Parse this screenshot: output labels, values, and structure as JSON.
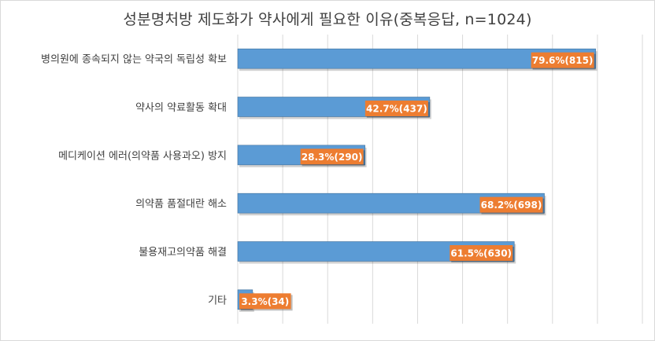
{
  "colors": {
    "bar": "#5b9bd5",
    "bar_edge": "#41719c",
    "label_box": "#ed7d31",
    "grid": "#d9d9d9",
    "text": "#404040"
  },
  "chart_data": {
    "type": "bar",
    "orientation": "horizontal",
    "title": "성분명처방 제도화가 약사에게 필요한 이유(중복응답, n=1024)",
    "xlabel": "",
    "ylabel": "",
    "xlim": [
      0,
      90
    ],
    "grid": true,
    "legend": "none",
    "categories": [
      "병의원에 종속되지 않는 약국의 독립성 확보",
      "약사의 약료활동 확대",
      "메디케이션 에러(의약품 사용과오) 방지",
      "의약품 품절대란 해소",
      "불용재고의약품 해결",
      "기타"
    ],
    "values": [
      79.6,
      42.7,
      28.3,
      68.2,
      61.5,
      3.3
    ],
    "data_labels": [
      "79.6%(815)",
      "42.7%(437)",
      "28.3%(290)",
      "68.2%(698)",
      "61.5%(630)",
      "3.3%(34)"
    ]
  }
}
